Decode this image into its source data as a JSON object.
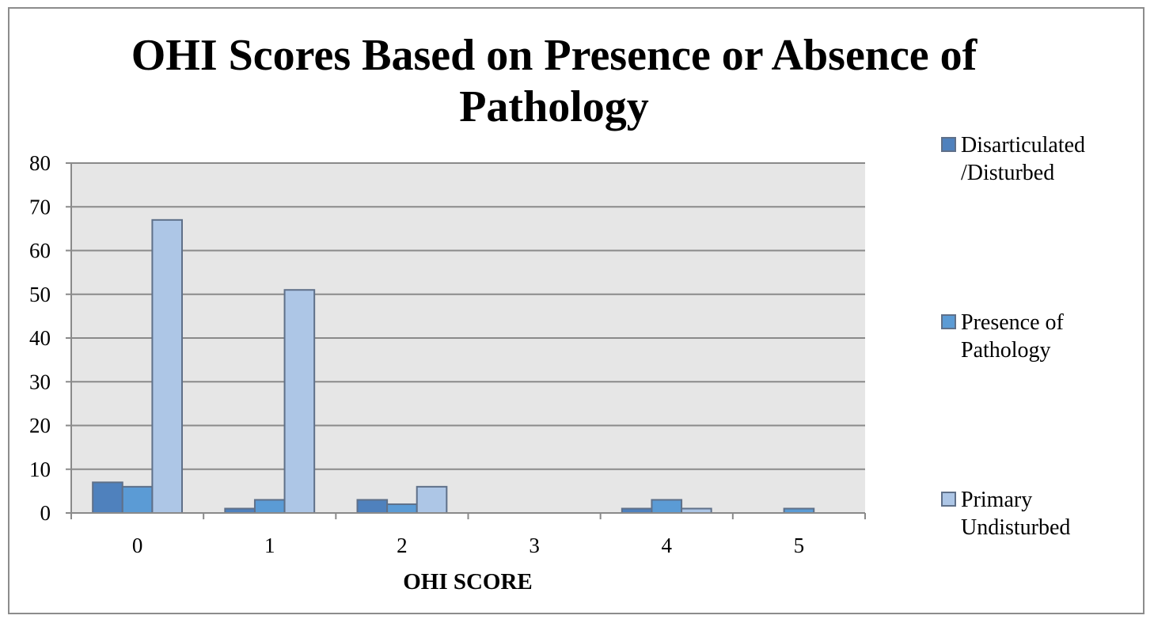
{
  "chart_data": {
    "type": "bar",
    "title_lines": [
      "OHI Scores Based on Presence or Absence of",
      "Pathology"
    ],
    "xlabel": "OHI SCORE",
    "ylabel": "",
    "categories": [
      "0",
      "1",
      "2",
      "3",
      "4",
      "5"
    ],
    "ylim": [
      0,
      80
    ],
    "yticks": [
      0,
      10,
      20,
      30,
      40,
      50,
      60,
      70,
      80
    ],
    "grid": true,
    "legend_position": "right",
    "series": [
      {
        "name": "Disarticulated /Disturbed",
        "legend_lines": [
          "Disarticulated",
          "/Disturbed"
        ],
        "color": "#4f81bd",
        "values": [
          7,
          1,
          3,
          0,
          1,
          0
        ]
      },
      {
        "name": "Presence of Pathology",
        "legend_lines": [
          "Presence of",
          "Pathology"
        ],
        "color": "#5b9bd5",
        "values": [
          6,
          3,
          2,
          0,
          3,
          1
        ]
      },
      {
        "name": "Primary Undisturbed",
        "legend_lines": [
          "Primary",
          "Undisturbed"
        ],
        "color": "#adc6e6",
        "values": [
          67,
          51,
          6,
          0,
          1,
          0
        ]
      }
    ]
  },
  "colors": {
    "plot_background": "#e6e6e6",
    "gridline": "#8a8a8a",
    "bar_outline": "#5f7089"
  }
}
